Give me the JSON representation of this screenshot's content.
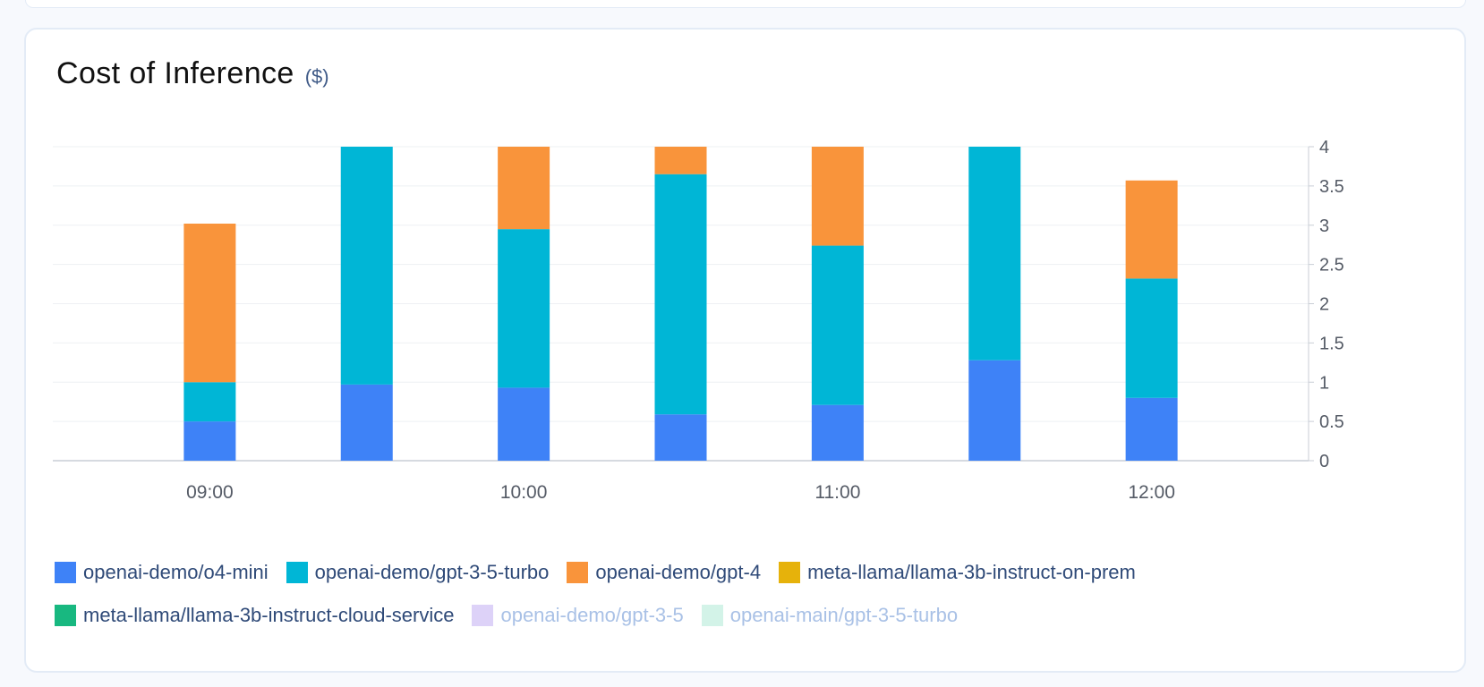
{
  "card": {
    "title": "Cost of Inference",
    "unit": "($)"
  },
  "chart_data": {
    "type": "bar",
    "stacked": true,
    "categories": [
      "09:00",
      "09:30",
      "10:00",
      "10:30",
      "11:00",
      "11:30",
      "12:00"
    ],
    "x_tick_labels": [
      "09:00",
      "10:00",
      "11:00",
      "12:00"
    ],
    "series": [
      {
        "name": "openai-demo/o4-mini",
        "color": "#3e82f7",
        "values": [
          0.5,
          0.97,
          0.93,
          0.59,
          0.71,
          1.28,
          0.8
        ]
      },
      {
        "name": "openai-demo/gpt-3-5-turbo",
        "color": "#00b6d6",
        "values": [
          0.5,
          3.03,
          2.02,
          3.06,
          2.03,
          2.72,
          1.52
        ]
      },
      {
        "name": "openai-demo/gpt-4",
        "color": "#f9943b",
        "values": [
          2.02,
          0,
          1.05,
          0.35,
          1.26,
          0,
          1.25
        ]
      },
      {
        "name": "meta-llama/llama-3b-instruct-on-prem",
        "color": "#e6b20b",
        "values": [
          0,
          0,
          0,
          0,
          0,
          0,
          0
        ]
      },
      {
        "name": "meta-llama/llama-3b-instruct-cloud-service",
        "color": "#18b880",
        "values": [
          0,
          0,
          0,
          0,
          0,
          0,
          0
        ]
      },
      {
        "name": "openai-demo/gpt-3-5",
        "color": "#ddd2f8",
        "values": [
          0,
          0,
          0,
          0,
          0,
          0,
          0
        ],
        "hidden": true
      },
      {
        "name": "openai-main/gpt-3-5-turbo",
        "color": "#d3f3e8",
        "values": [
          0,
          0,
          0,
          0,
          0,
          0,
          0
        ],
        "hidden": true
      }
    ],
    "ylim": [
      0,
      4
    ],
    "y_ticks": [
      "0",
      "0.5",
      "1",
      "1.5",
      "2",
      "2.5",
      "3",
      "3.5",
      "4"
    ],
    "y_axis_side": "right",
    "grid": true,
    "legend_position": "bottom"
  }
}
